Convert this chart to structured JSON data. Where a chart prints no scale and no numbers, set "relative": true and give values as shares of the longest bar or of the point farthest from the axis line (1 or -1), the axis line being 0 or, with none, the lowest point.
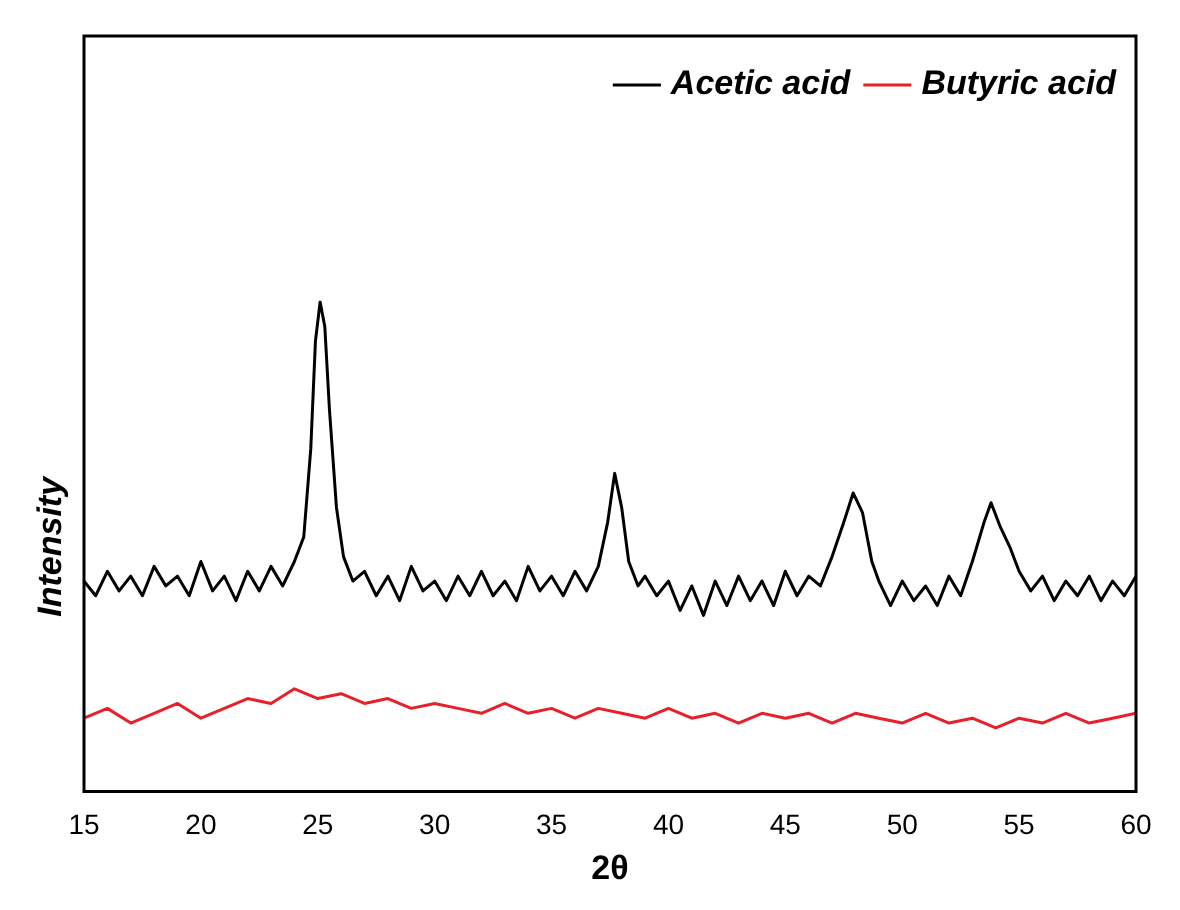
{
  "chart_data": {
    "type": "line",
    "relative": true,
    "xlabel": "2θ",
    "ylabel": "Intensity",
    "xlim": [
      15,
      60
    ],
    "xticks": [
      15,
      20,
      25,
      30,
      35,
      40,
      45,
      50,
      55,
      60
    ],
    "grid": false,
    "legend": "top right",
    "marker": "none",
    "line_style": "solid",
    "series": [
      {
        "name": "Acetic acid",
        "color": "#000000",
        "x": [
          15,
          15.5,
          16,
          16.5,
          17,
          17.5,
          18,
          18.5,
          19,
          19.5,
          20,
          20.5,
          21,
          21.5,
          22,
          22.5,
          23,
          23.5,
          24,
          24.4,
          24.7,
          24.9,
          25.1,
          25.3,
          25.5,
          25.8,
          26.1,
          26.5,
          27,
          27.5,
          28,
          28.5,
          29,
          29.5,
          30,
          30.5,
          31,
          31.5,
          32,
          32.5,
          33,
          33.5,
          34,
          34.5,
          35,
          35.5,
          36,
          36.5,
          37,
          37.4,
          37.7,
          38,
          38.3,
          38.7,
          39,
          39.5,
          40,
          40.5,
          41,
          41.5,
          42,
          42.5,
          43,
          43.5,
          44,
          44.5,
          45,
          45.5,
          46,
          46.5,
          47,
          47.5,
          47.9,
          48.3,
          48.7,
          49,
          49.5,
          50,
          50.5,
          51,
          51.5,
          52,
          52.5,
          53,
          53.5,
          53.8,
          54.2,
          54.6,
          55,
          55.5,
          56,
          56.5,
          57,
          57.5,
          58,
          58.5,
          59,
          59.5,
          60
        ],
        "values": [
          0.43,
          0.4,
          0.45,
          0.41,
          0.44,
          0.4,
          0.46,
          0.42,
          0.44,
          0.4,
          0.47,
          0.41,
          0.44,
          0.39,
          0.45,
          0.41,
          0.46,
          0.42,
          0.47,
          0.52,
          0.7,
          0.92,
          1.0,
          0.95,
          0.78,
          0.58,
          0.48,
          0.43,
          0.45,
          0.4,
          0.44,
          0.39,
          0.46,
          0.41,
          0.43,
          0.39,
          0.44,
          0.4,
          0.45,
          0.4,
          0.43,
          0.39,
          0.46,
          0.41,
          0.44,
          0.4,
          0.45,
          0.41,
          0.46,
          0.55,
          0.65,
          0.58,
          0.47,
          0.42,
          0.44,
          0.4,
          0.43,
          0.37,
          0.42,
          0.36,
          0.43,
          0.38,
          0.44,
          0.39,
          0.43,
          0.38,
          0.45,
          0.4,
          0.44,
          0.42,
          0.48,
          0.55,
          0.61,
          0.57,
          0.47,
          0.43,
          0.38,
          0.43,
          0.39,
          0.42,
          0.38,
          0.44,
          0.4,
          0.47,
          0.55,
          0.59,
          0.54,
          0.5,
          0.45,
          0.41,
          0.44,
          0.39,
          0.43,
          0.4,
          0.44,
          0.39,
          0.43,
          0.4,
          0.44
        ]
      },
      {
        "name": "Butyric acid",
        "color": "#e8202a",
        "x": [
          15,
          16,
          17,
          18,
          19,
          20,
          21,
          22,
          23,
          24,
          25,
          26,
          27,
          28,
          29,
          30,
          31,
          32,
          33,
          34,
          35,
          36,
          37,
          38,
          39,
          40,
          41,
          42,
          43,
          44,
          45,
          46,
          47,
          48,
          49,
          50,
          51,
          52,
          53,
          54,
          55,
          56,
          57,
          58,
          59,
          60
        ],
        "values": [
          0.15,
          0.17,
          0.14,
          0.16,
          0.18,
          0.15,
          0.17,
          0.19,
          0.18,
          0.21,
          0.19,
          0.2,
          0.18,
          0.19,
          0.17,
          0.18,
          0.17,
          0.16,
          0.18,
          0.16,
          0.17,
          0.15,
          0.17,
          0.16,
          0.15,
          0.17,
          0.15,
          0.16,
          0.14,
          0.16,
          0.15,
          0.16,
          0.14,
          0.16,
          0.15,
          0.14,
          0.16,
          0.14,
          0.15,
          0.13,
          0.15,
          0.14,
          0.16,
          0.14,
          0.15,
          0.16
        ]
      }
    ]
  }
}
